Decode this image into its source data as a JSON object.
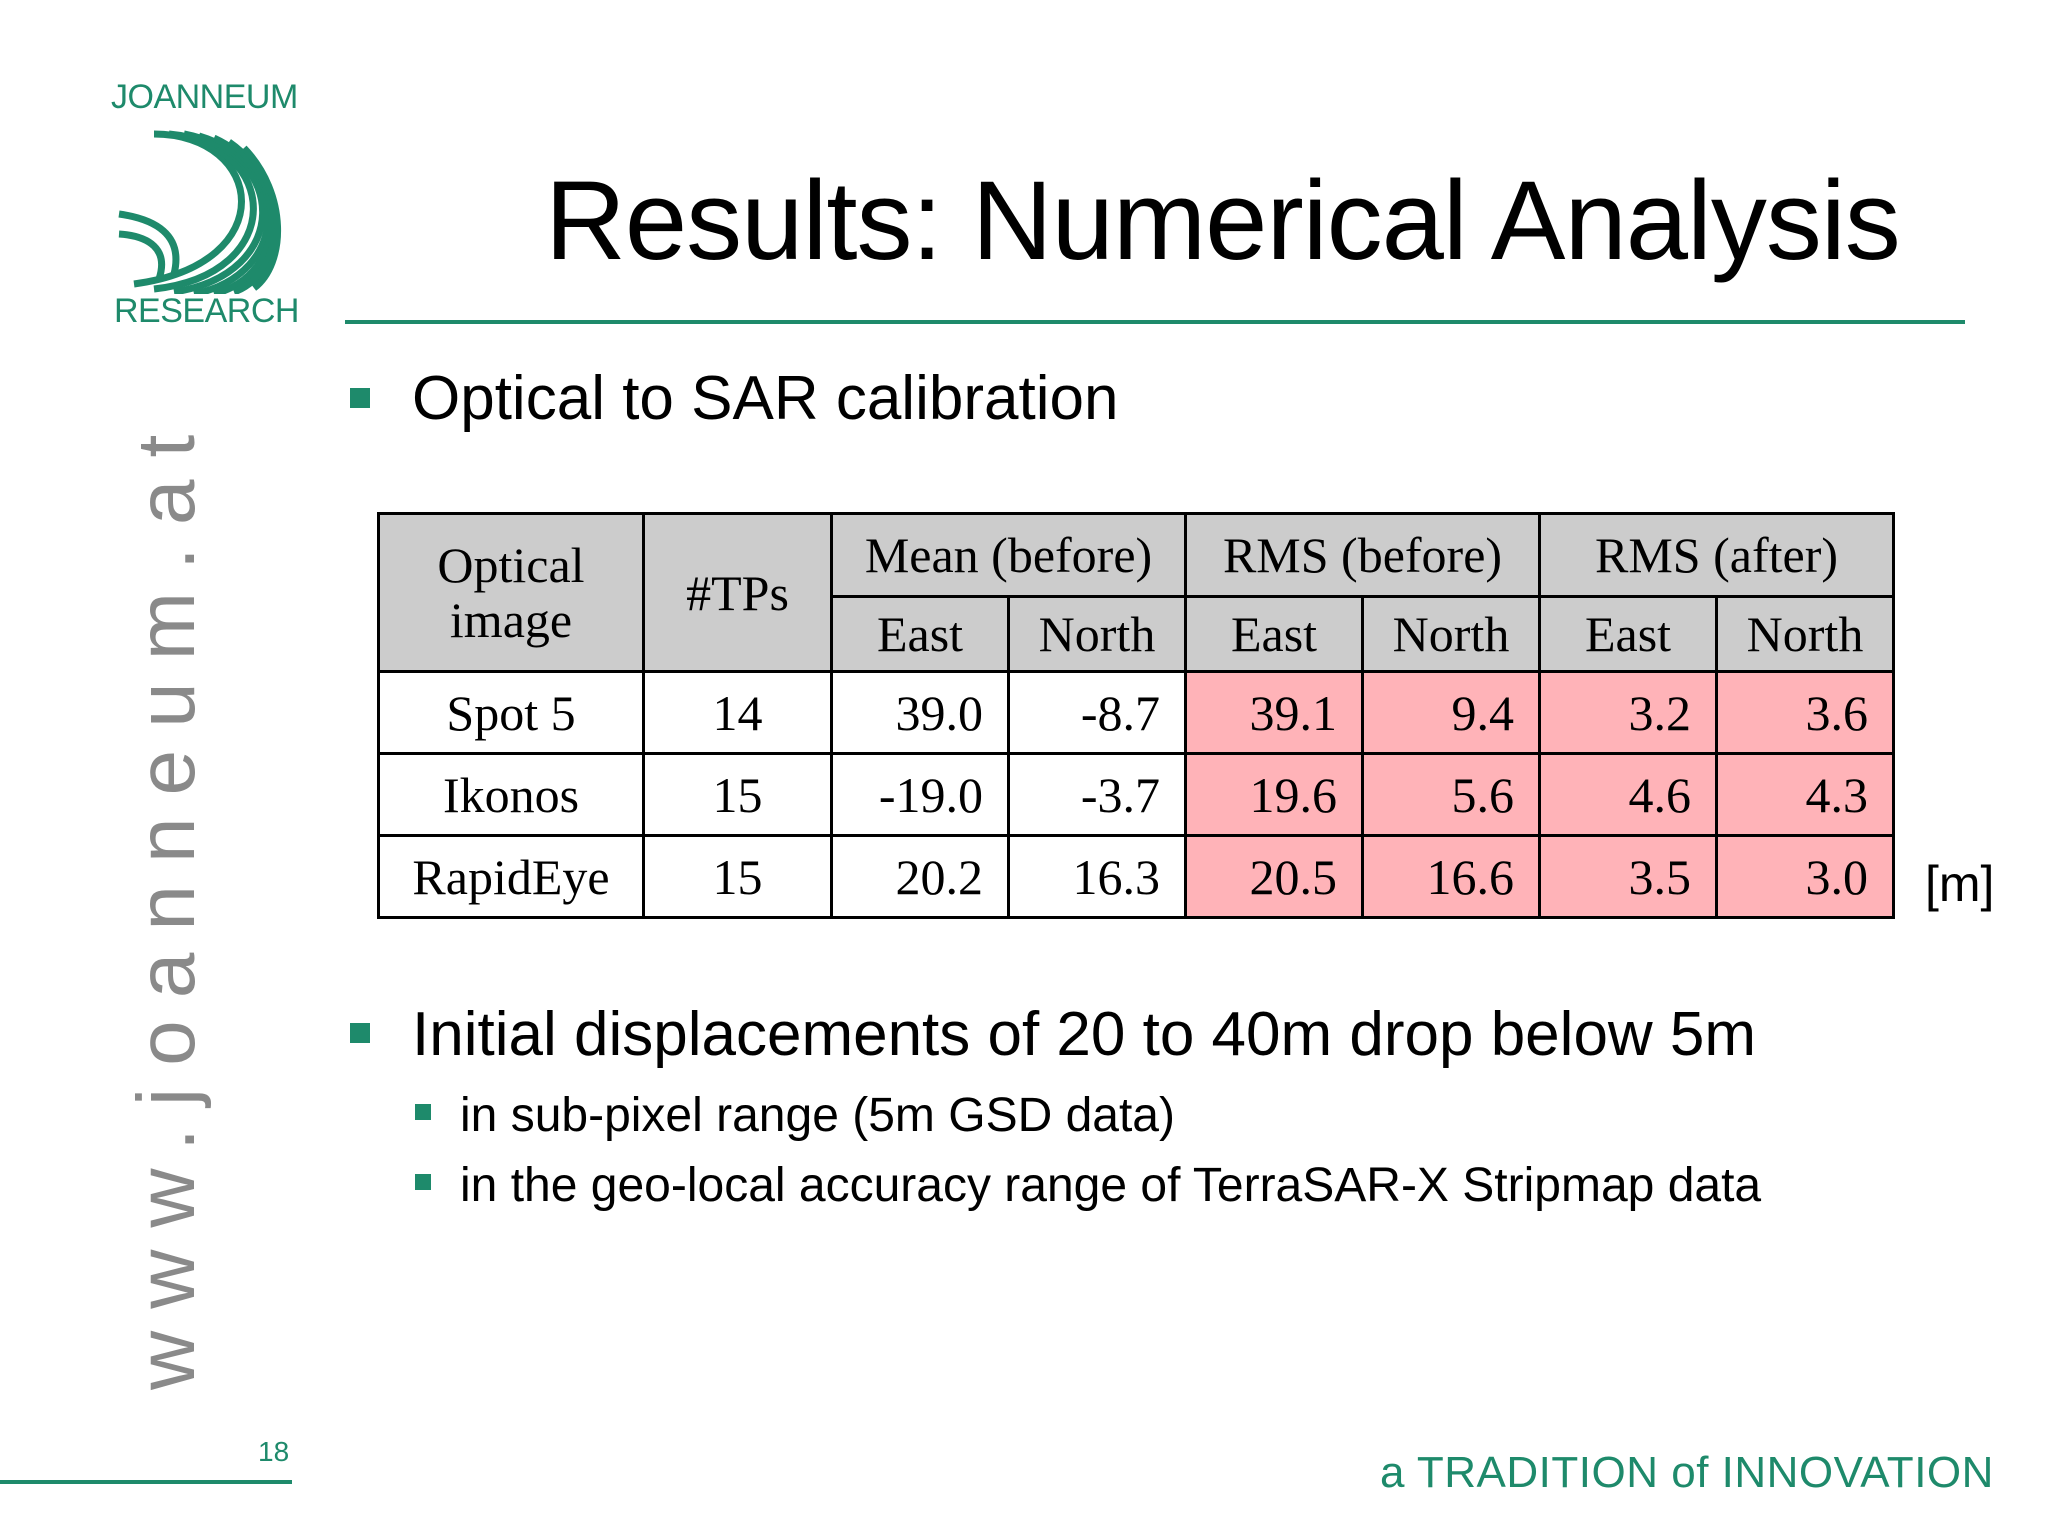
{
  "logo": {
    "top": "JOANNEUM",
    "bottom": "RESEARCH"
  },
  "title": "Results: Numerical Analysis",
  "bullets": {
    "first": "Optical to SAR calibration",
    "second": "Initial displacements of 20 to 40m drop below 5m",
    "sub": [
      "in sub-pixel range (5m GSD data)",
      "in the geo-local accuracy range of TerraSAR-X Stripmap data"
    ]
  },
  "table": {
    "headers": {
      "image": "Optical image",
      "tps": "#TPs",
      "mean_before": "Mean (before)",
      "rms_before": "RMS (before)",
      "rms_after": "RMS (after)",
      "east": "East",
      "north": "North"
    },
    "rows": [
      {
        "image": "Spot 5",
        "tps": "14",
        "mean_east": "39.0",
        "mean_north": "-8.7",
        "rmsb_east": "39.1",
        "rmsb_north": "9.4",
        "rmsa_east": "3.2",
        "rmsa_north": "3.6"
      },
      {
        "image": "Ikonos",
        "tps": "15",
        "mean_east": "-19.0",
        "mean_north": "-3.7",
        "rmsb_east": "19.6",
        "rmsb_north": "5.6",
        "rmsa_east": "4.6",
        "rmsa_north": "4.3"
      },
      {
        "image": "RapidEye",
        "tps": "15",
        "mean_east": "20.2",
        "mean_north": "16.3",
        "rmsb_east": "20.5",
        "rmsb_north": "16.6",
        "rmsa_east": "3.5",
        "rmsa_north": "3.0"
      }
    ],
    "unit": "[m]"
  },
  "side_url": "www.joanneum.at",
  "page_number": "18",
  "tagline": "a TRADITION of INNOVATION",
  "colors": {
    "accent": "#1e8a6b",
    "header_bg": "#cccccc",
    "highlight": "#ffb3b8"
  }
}
